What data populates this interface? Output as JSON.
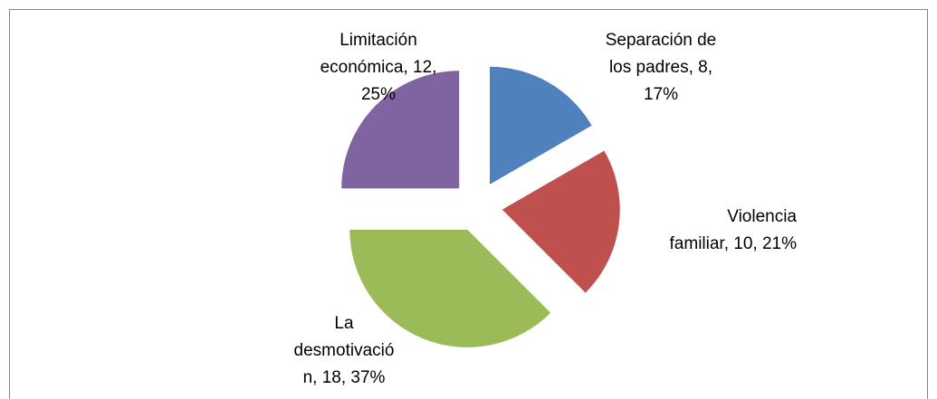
{
  "chart_data": {
    "type": "pie",
    "values": [
      8,
      10,
      18,
      12
    ],
    "value_labels": [
      [
        "Separación de",
        "los padres, 8,",
        "17%"
      ],
      [
        "Violencia",
        "familiar, 10, 21%"
      ],
      [
        "La",
        "desmotivació",
        "n, 18, 37%"
      ],
      [
        "Limitación",
        "económica, 12,",
        "25%"
      ]
    ],
    "colors": [
      "#4f81bd",
      "#c0504d",
      "#9bbb59",
      "#8064a2"
    ],
    "exploded": true
  }
}
